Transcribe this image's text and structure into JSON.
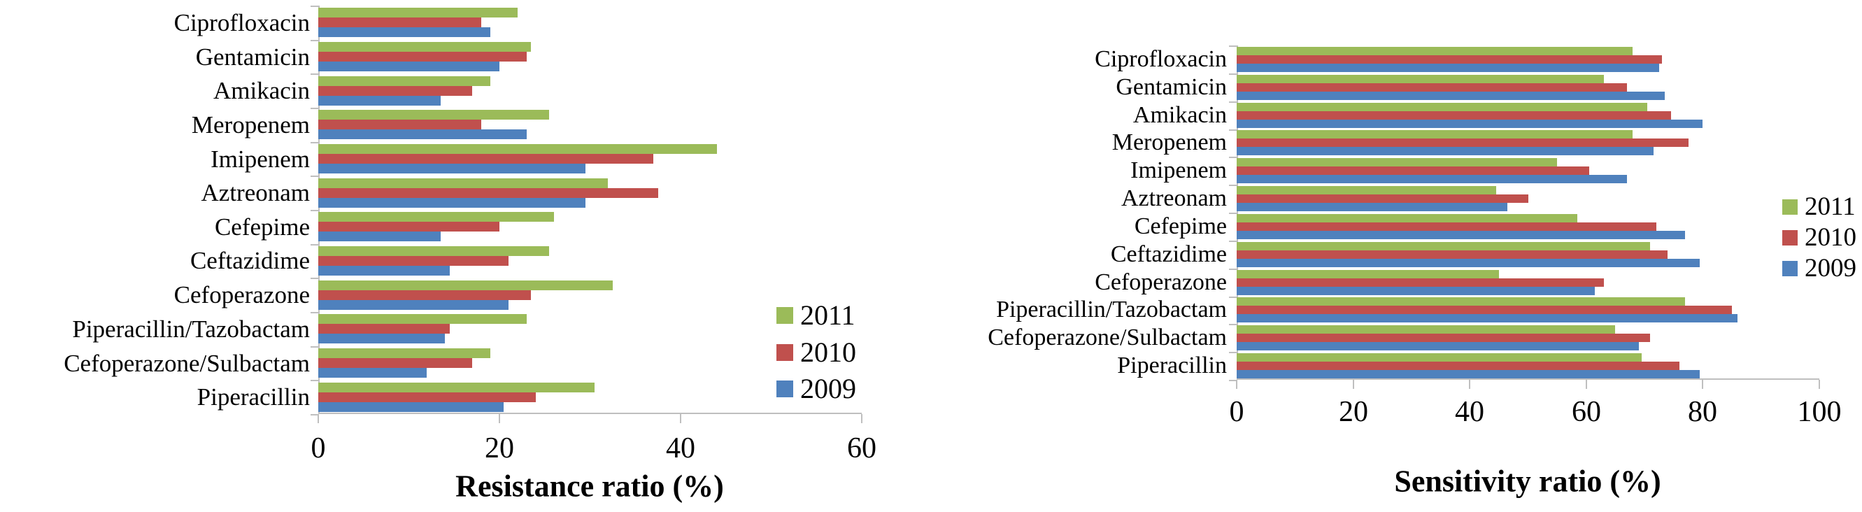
{
  "figure": {
    "background": "#FFFFFF",
    "axis_line_color": "#BFBFBF",
    "text_color": "#000000"
  },
  "legend": {
    "labels": [
      "2011",
      "2010",
      "2009"
    ],
    "colors": [
      "#9BBB59",
      "#C0504D",
      "#4F81BD"
    ]
  },
  "chart_data": [
    {
      "type": "bar",
      "orientation": "horizontal",
      "xlabel": "Resistance ratio (%)",
      "xlim": [
        0,
        60
      ],
      "xticks": [
        0,
        20,
        40,
        60
      ],
      "grid": false,
      "legend_position": "right-middle",
      "categories": [
        "Ciprofloxacin",
        "Gentamicin",
        "Amikacin",
        "Meropenem",
        "Imipenem",
        "Aztreonam",
        "Cefepime",
        "Ceftazidime",
        "Cefoperazone",
        "Piperacillin/Tazobactam",
        "Cefoperazone/Sulbactam",
        "Piperacillin"
      ],
      "series": [
        {
          "name": "2011",
          "color": "#9BBB59",
          "values": [
            22,
            23.5,
            19,
            25.5,
            44,
            32,
            26,
            25.5,
            32.5,
            23,
            19,
            30.5
          ]
        },
        {
          "name": "2010",
          "color": "#C0504D",
          "values": [
            18,
            23,
            17,
            18,
            37,
            37.5,
            20,
            21,
            23.5,
            14.5,
            17,
            24
          ]
        },
        {
          "name": "2009",
          "color": "#4F81BD",
          "values": [
            19,
            20,
            13.5,
            23,
            29.5,
            29.5,
            13.5,
            14.5,
            21,
            14,
            12,
            20.5
          ]
        }
      ]
    },
    {
      "type": "bar",
      "orientation": "horizontal",
      "xlabel": "Sensitivity ratio (%)",
      "xlim": [
        0,
        100
      ],
      "xticks": [
        0,
        20,
        40,
        60,
        80,
        100
      ],
      "grid": false,
      "legend_position": "right-middle",
      "categories": [
        "Ciprofloxacin",
        "Gentamicin",
        "Amikacin",
        "Meropenem",
        "Imipenem",
        "Aztreonam",
        "Cefepime",
        "Ceftazidime",
        "Cefoperazone",
        "Piperacillin/Tazobactam",
        "Cefoperazone/Sulbactam",
        "Piperacillin"
      ],
      "series": [
        {
          "name": "2011",
          "color": "#9BBB59",
          "values": [
            68,
            63,
            70.5,
            68,
            55,
            44.5,
            58.5,
            71,
            45,
            77,
            65,
            69.5
          ]
        },
        {
          "name": "2010",
          "color": "#C0504D",
          "values": [
            73,
            67,
            74.5,
            77.5,
            60.5,
            50,
            72,
            74,
            63,
            85,
            71,
            76
          ]
        },
        {
          "name": "2009",
          "color": "#4F81BD",
          "values": [
            72.5,
            73.5,
            80,
            71.5,
            67,
            46.5,
            77,
            79.5,
            61.5,
            86,
            69,
            79.5
          ]
        }
      ]
    }
  ]
}
